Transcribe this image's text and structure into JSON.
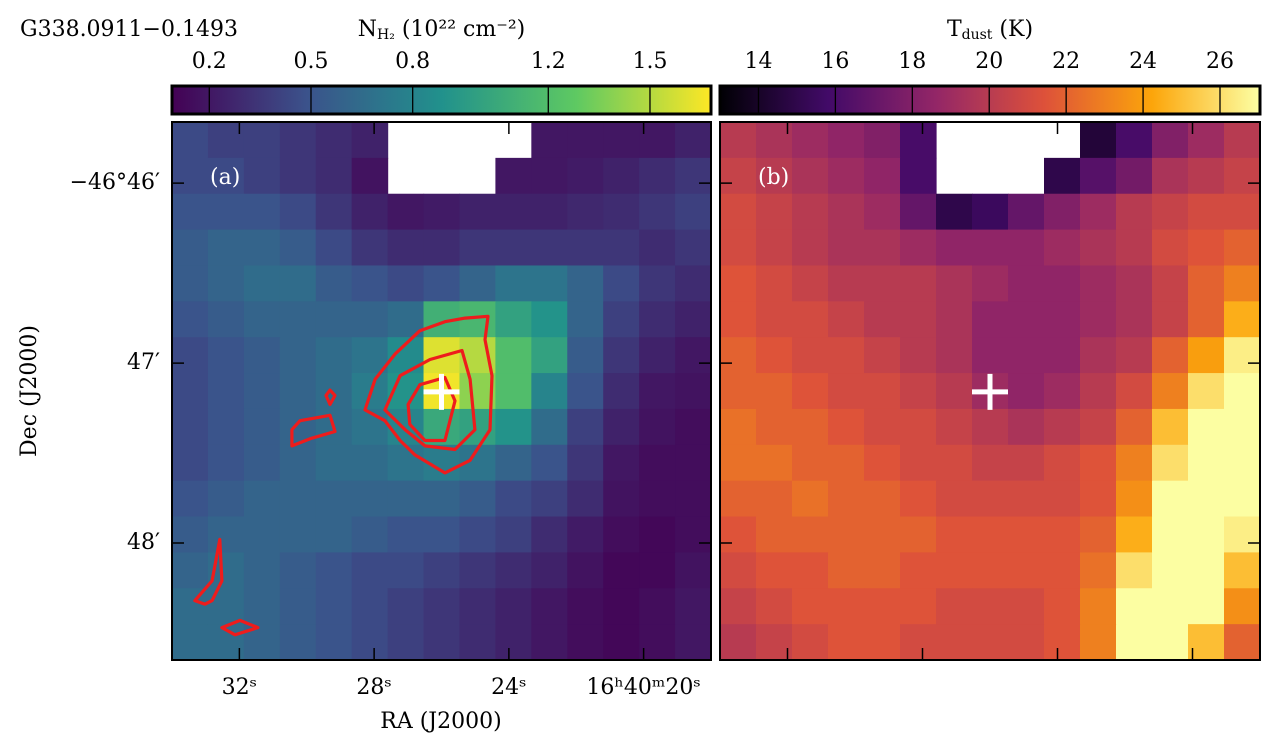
{
  "chart_data": [
    {
      "type": "heatmap",
      "title": "G338.0911−0.1493",
      "panel_label": "(a)",
      "colorbar_label": {
        "main": "N",
        "sub": "H₂",
        "rest": " (10²² cm⁻²)"
      },
      "colormap": "viridis",
      "clim": [
        0.09,
        1.68
      ],
      "cticks": [
        0.2,
        0.5,
        0.8,
        1.2,
        1.5
      ],
      "xlabel": "RA (J2000)",
      "ylabel": "Dec (J2000)",
      "xlim": [
        34.0,
        18.0
      ],
      "ylim": [
        45.66,
        48.65
      ],
      "xticks": [
        {
          "value": 32,
          "label": "32ˢ"
        },
        {
          "value": 28,
          "label": "28ˢ"
        },
        {
          "value": 24,
          "label": "24ˢ"
        },
        {
          "value": 20,
          "label": "16ʰ40ᵐ20ˢ"
        }
      ],
      "yticks": [
        {
          "value": 46,
          "label": "−46°46′"
        },
        {
          "value": 47,
          "label": "47′"
        },
        {
          "value": 48,
          "label": "48′"
        }
      ],
      "z": [
        [
          0.45,
          0.4,
          0.4,
          0.35,
          0.3,
          0.25,
          null,
          null,
          null,
          null,
          0.2,
          0.2,
          0.2,
          0.2,
          0.25
        ],
        [
          0.45,
          0.45,
          0.4,
          0.35,
          0.3,
          0.18,
          null,
          null,
          null,
          0.2,
          0.2,
          0.22,
          0.25,
          0.3,
          0.35
        ],
        [
          0.5,
          0.5,
          0.5,
          0.45,
          0.35,
          0.25,
          0.2,
          0.22,
          0.25,
          0.25,
          0.25,
          0.28,
          0.3,
          0.35,
          0.4
        ],
        [
          0.55,
          0.6,
          0.6,
          0.55,
          0.45,
          0.35,
          0.3,
          0.3,
          0.35,
          0.35,
          0.35,
          0.35,
          0.35,
          0.3,
          0.35
        ],
        [
          0.55,
          0.6,
          0.65,
          0.65,
          0.55,
          0.5,
          0.45,
          0.5,
          0.6,
          0.7,
          0.7,
          0.6,
          0.45,
          0.35,
          0.3
        ],
        [
          0.5,
          0.55,
          0.6,
          0.6,
          0.6,
          0.6,
          0.65,
          1.1,
          1.15,
          1.0,
          0.9,
          0.6,
          0.4,
          0.3,
          0.25
        ],
        [
          0.45,
          0.5,
          0.55,
          0.6,
          0.65,
          0.7,
          0.85,
          1.6,
          1.5,
          1.2,
          1.0,
          0.55,
          0.35,
          0.25,
          0.2
        ],
        [
          0.45,
          0.5,
          0.55,
          0.6,
          0.65,
          0.75,
          0.9,
          1.65,
          1.4,
          1.2,
          0.8,
          0.5,
          0.3,
          0.2,
          0.18
        ],
        [
          0.45,
          0.5,
          0.55,
          0.6,
          0.65,
          0.7,
          0.8,
          1.05,
          1.0,
          0.9,
          0.65,
          0.4,
          0.25,
          0.18,
          0.15
        ],
        [
          0.45,
          0.5,
          0.55,
          0.6,
          0.65,
          0.65,
          0.7,
          0.75,
          0.7,
          0.6,
          0.5,
          0.35,
          0.2,
          0.15,
          0.15
        ],
        [
          0.5,
          0.55,
          0.6,
          0.6,
          0.6,
          0.6,
          0.6,
          0.6,
          0.55,
          0.45,
          0.4,
          0.3,
          0.18,
          0.15,
          0.15
        ],
        [
          0.55,
          0.6,
          0.6,
          0.6,
          0.6,
          0.55,
          0.5,
          0.5,
          0.45,
          0.4,
          0.3,
          0.22,
          0.15,
          0.12,
          0.15
        ],
        [
          0.6,
          0.65,
          0.6,
          0.55,
          0.5,
          0.45,
          0.45,
          0.4,
          0.35,
          0.3,
          0.25,
          0.18,
          0.12,
          0.12,
          0.18
        ],
        [
          0.65,
          0.65,
          0.6,
          0.55,
          0.5,
          0.45,
          0.4,
          0.35,
          0.3,
          0.25,
          0.2,
          0.15,
          0.12,
          0.15,
          0.2
        ],
        [
          0.65,
          0.65,
          0.6,
          0.55,
          0.5,
          0.45,
          0.4,
          0.35,
          0.3,
          0.25,
          0.2,
          0.15,
          0.12,
          0.15,
          0.2
        ]
      ],
      "marker": {
        "x": 26.0,
        "y": 47.16,
        "color": "#ffffff"
      },
      "contour_color": "#ee1c1c",
      "contours": [
        {
          "x": [
            28.27,
            27.97,
            27.38,
            26.64,
            25.9,
            25.3,
            24.62,
            24.71,
            24.5,
            24.56,
            25.15,
            25.9,
            26.79,
            27.23,
            27.68
          ],
          "y": [
            47.26,
            47.09,
            46.95,
            46.82,
            46.77,
            46.75,
            46.74,
            46.87,
            47.07,
            47.37,
            47.54,
            47.61,
            47.51,
            47.43,
            47.32
          ]
        },
        {
          "x": [
            27.68,
            27.23,
            26.34,
            25.39,
            25.15,
            25.01,
            25.6,
            26.49,
            27.08
          ],
          "y": [
            47.26,
            47.07,
            46.98,
            46.93,
            47.09,
            47.37,
            47.48,
            47.46,
            47.37
          ]
        },
        {
          "x": [
            26.99,
            26.64,
            25.9,
            25.6,
            25.9,
            26.49,
            26.94
          ],
          "y": [
            47.23,
            47.12,
            47.08,
            47.21,
            47.43,
            47.43,
            47.34
          ]
        },
        {
          "x": [
            30.44,
            30.2,
            29.31,
            29.16,
            29.9,
            30.44
          ],
          "y": [
            47.37,
            47.32,
            47.29,
            47.38,
            47.42,
            47.46
          ]
        },
        {
          "x": [
            29.31,
            29.16,
            29.31,
            29.43
          ],
          "y": [
            47.15,
            47.18,
            47.23,
            47.18
          ]
        },
        {
          "x": [
            33.32,
            32.81,
            32.58,
            32.52,
            32.81,
            33.02
          ],
          "y": [
            48.32,
            48.21,
            47.98,
            48.21,
            48.32,
            48.34
          ]
        },
        {
          "x": [
            32.52,
            31.98,
            31.45,
            32.13
          ],
          "y": [
            48.47,
            48.43,
            48.47,
            48.51
          ]
        }
      ]
    },
    {
      "type": "heatmap",
      "panel_label": "(b)",
      "colorbar_label": {
        "main": "T",
        "sub": "dust",
        "rest": " (K)"
      },
      "colormap": "inferno",
      "clim": [
        13.0,
        27.04
      ],
      "cticks": [
        14,
        16,
        18,
        20,
        22,
        24,
        26
      ],
      "z": [
        [
          20,
          19.5,
          19,
          18.5,
          18,
          16,
          null,
          null,
          null,
          null,
          14.5,
          16,
          18,
          19,
          20
        ],
        [
          20.5,
          20,
          19.5,
          19,
          18.5,
          16,
          null,
          null,
          null,
          15,
          16.5,
          17.5,
          19.5,
          20,
          20.5
        ],
        [
          21,
          20.5,
          20,
          19.5,
          19,
          17,
          15,
          15.5,
          17,
          18,
          19,
          20,
          20.5,
          21,
          21
        ],
        [
          21,
          20.5,
          20,
          19.5,
          19.5,
          19,
          18.5,
          18.5,
          18.5,
          19,
          19.5,
          20,
          21,
          21.5,
          22
        ],
        [
          21.5,
          21,
          20.5,
          20,
          20,
          20,
          19.5,
          19,
          18.5,
          18.5,
          19,
          19.5,
          20.5,
          22,
          23
        ],
        [
          21.5,
          21,
          21,
          20.5,
          20,
          20,
          19.5,
          18.5,
          18.5,
          18.5,
          19,
          19.5,
          20.5,
          22,
          24.5
        ],
        [
          22,
          21.5,
          21,
          21,
          20.5,
          20,
          19.5,
          18.5,
          18.5,
          18.5,
          19.5,
          20,
          22,
          24,
          26.5
        ],
        [
          22,
          22,
          21.5,
          21,
          21,
          20.5,
          20,
          19,
          18.5,
          19,
          20,
          21,
          23,
          26,
          27
        ],
        [
          22.5,
          22,
          22,
          21.5,
          21,
          21,
          20.5,
          20,
          19.5,
          20,
          20.5,
          22,
          25,
          27,
          27
        ],
        [
          22.5,
          22.5,
          22,
          22,
          21.5,
          21,
          21,
          20.5,
          20.5,
          21,
          21.5,
          23,
          26,
          27,
          27
        ],
        [
          22,
          22,
          22.5,
          22,
          22,
          21.5,
          21,
          21,
          21,
          21,
          21.5,
          23.5,
          27,
          27,
          27
        ],
        [
          21.5,
          22,
          22,
          22,
          22,
          22,
          21.5,
          21.5,
          21.5,
          21.5,
          22,
          24.5,
          27,
          27,
          26.5
        ],
        [
          21,
          21.5,
          21.5,
          22,
          22,
          21.5,
          21.5,
          21.5,
          21.5,
          21.5,
          22.5,
          26,
          27,
          27,
          25
        ],
        [
          20.5,
          21,
          21.5,
          21.5,
          21.5,
          21.5,
          21,
          21,
          21,
          21.5,
          23,
          27,
          27,
          27,
          23.5
        ],
        [
          20,
          20.5,
          21,
          21.5,
          21.5,
          21,
          21,
          21,
          21,
          21.5,
          23,
          27,
          27,
          25,
          22
        ]
      ],
      "marker": {
        "x": 26.0,
        "y": 47.16,
        "color": "#ffffff"
      }
    }
  ]
}
